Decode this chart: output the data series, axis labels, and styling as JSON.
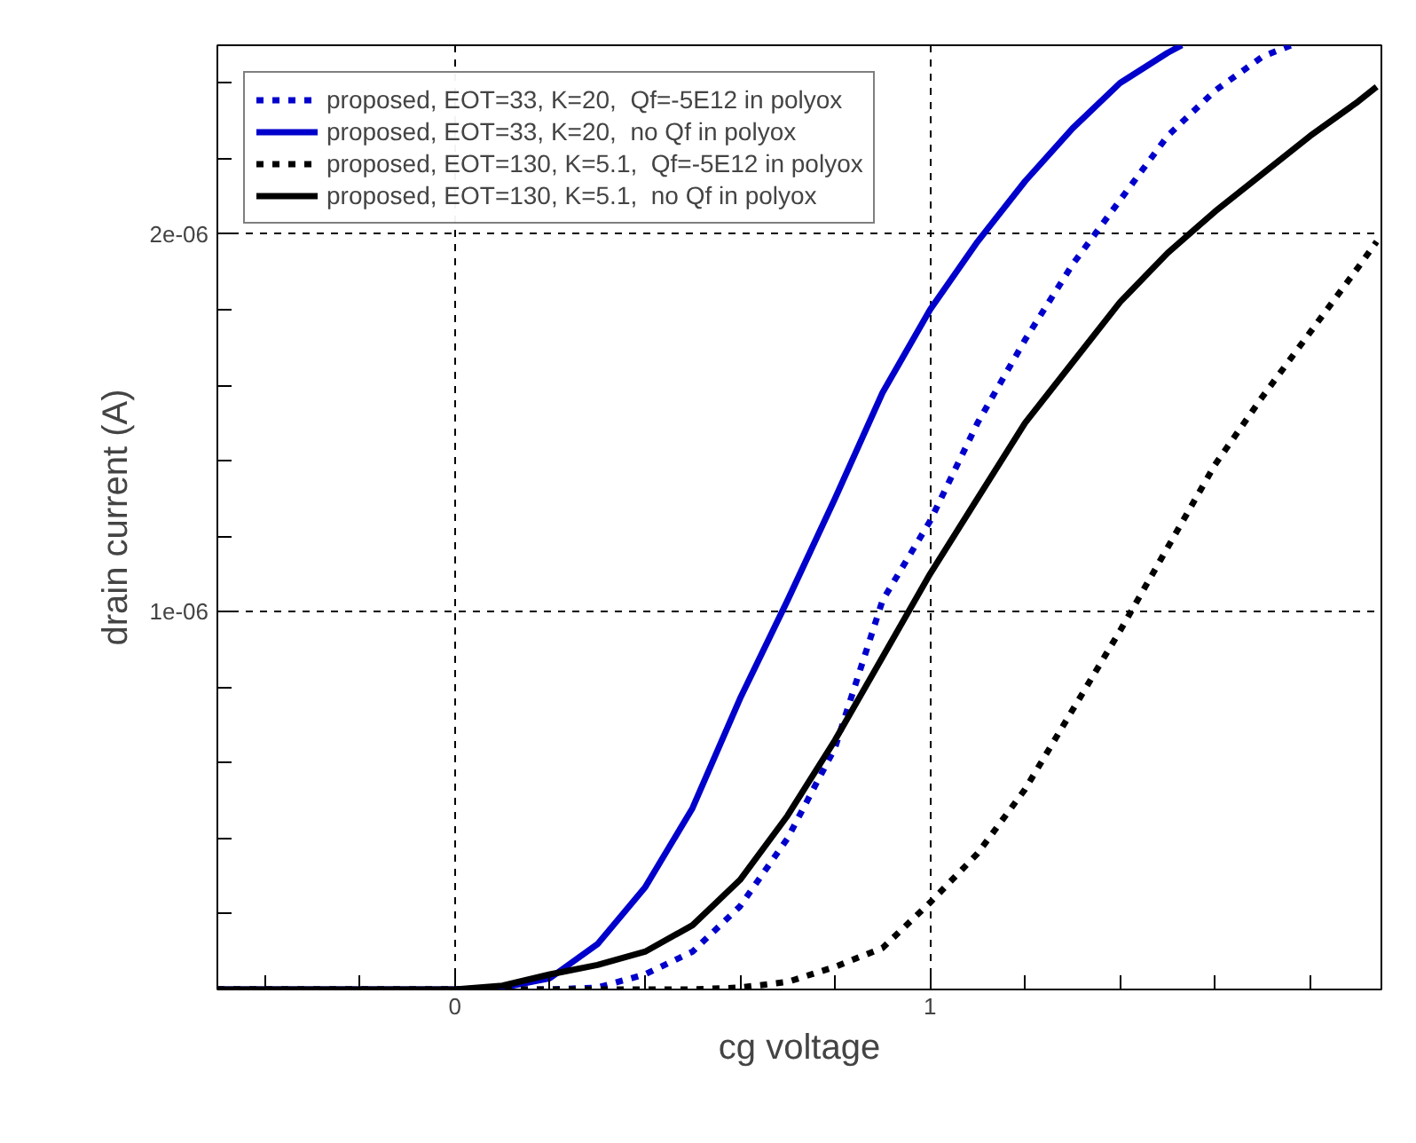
{
  "chart_data": {
    "type": "line",
    "xlabel": "cg voltage",
    "ylabel": "drain current (A)",
    "xlim": [
      -0.5,
      1.95
    ],
    "ylim": [
      0,
      2.5e-06
    ],
    "xticks": [
      {
        "value": -0.4,
        "label": null
      },
      {
        "value": -0.2,
        "label": null
      },
      0,
      {
        "value": 0.2,
        "label": null
      },
      {
        "value": 0.4,
        "label": null
      },
      {
        "value": 0.6,
        "label": null
      },
      {
        "value": 0.8,
        "label": null
      },
      1,
      {
        "value": 1.2,
        "label": null
      },
      {
        "value": 1.4,
        "label": null
      },
      {
        "value": 1.6,
        "label": null
      },
      {
        "value": 1.8,
        "label": null
      }
    ],
    "yticks": [
      {
        "value": 2e-07,
        "label": null
      },
      {
        "value": 4e-07,
        "label": null
      },
      {
        "value": 6e-07,
        "label": null
      },
      {
        "value": 8e-07,
        "label": null
      },
      {
        "value": 1e-06,
        "label": "1e-06"
      },
      {
        "value": 1.2e-06,
        "label": null
      },
      {
        "value": 1.4e-06,
        "label": null
      },
      {
        "value": 1.6e-06,
        "label": null
      },
      {
        "value": 1.8e-06,
        "label": null
      },
      {
        "value": 2e-06,
        "label": "2e-06"
      },
      {
        "value": 2.2e-06,
        "label": null
      },
      {
        "value": 2.4e-06,
        "label": null
      }
    ],
    "grid": true,
    "legend": "top left",
    "series": [
      {
        "name": "proposed, EOT=33, K=20,  Qf=-5E12 in polyox",
        "color": "#0000cc",
        "line_style": "dotted",
        "x": [
          -0.5,
          0,
          0.2,
          0.3,
          0.4,
          0.5,
          0.6,
          0.7,
          0.8,
          0.9,
          1.0,
          1.1,
          1.2,
          1.3,
          1.4,
          1.5,
          1.6,
          1.7,
          1.76
        ],
        "values": [
          0,
          0,
          0,
          5e-09,
          4e-08,
          1e-07,
          2.2e-07,
          4e-07,
          6.4e-07,
          1.03e-06,
          1.24e-06,
          1.5e-06,
          1.72e-06,
          1.92e-06,
          2.09e-06,
          2.26e-06,
          2.38e-06,
          2.47e-06,
          2.5e-06
        ]
      },
      {
        "name": "proposed, EOT=33, K=20,  no Qf in polyox",
        "color": "#0000cc",
        "line_style": "solid",
        "x": [
          -0.5,
          0,
          0.1,
          0.2,
          0.3,
          0.4,
          0.5,
          0.6,
          0.7,
          0.8,
          0.9,
          1.0,
          1.1,
          1.2,
          1.3,
          1.4,
          1.5,
          1.53
        ],
        "values": [
          0,
          0,
          5e-09,
          3e-08,
          1.2e-07,
          2.7e-07,
          4.8e-07,
          7.7e-07,
          1.03e-06,
          1.3e-06,
          1.58e-06,
          1.8e-06,
          1.98e-06,
          2.14e-06,
          2.28e-06,
          2.4e-06,
          2.48e-06,
          2.5e-06
        ]
      },
      {
        "name": "proposed, EOT=130, K=5.1,  Qf=-5E12 in polyox",
        "color": "#000000",
        "line_style": "dotted",
        "x": [
          -0.5,
          0.5,
          0.6,
          0.7,
          0.8,
          0.9,
          1.0,
          1.1,
          1.2,
          1.3,
          1.4,
          1.5,
          1.6,
          1.7,
          1.8,
          1.9,
          1.94
        ],
        "values": [
          0,
          0,
          5e-09,
          2e-08,
          6e-08,
          1.1e-07,
          2.3e-07,
          3.6e-07,
          5.3e-07,
          7.4e-07,
          9.5e-07,
          1.17e-06,
          1.39e-06,
          1.57e-06,
          1.74e-06,
          1.91e-06,
          1.98e-06
        ]
      },
      {
        "name": "proposed, EOT=130, K=5.1,  no Qf in polyox",
        "color": "#000000",
        "line_style": "solid",
        "x": [
          -0.5,
          0,
          0.1,
          0.2,
          0.3,
          0.4,
          0.5,
          0.6,
          0.7,
          0.8,
          0.9,
          1.0,
          1.1,
          1.2,
          1.3,
          1.4,
          1.5,
          1.6,
          1.7,
          1.8,
          1.9,
          1.94
        ],
        "values": [
          0,
          0,
          1e-08,
          4e-08,
          6.5e-08,
          1e-07,
          1.7e-07,
          2.9e-07,
          4.6e-07,
          6.6e-07,
          8.8e-07,
          1.1e-06,
          1.3e-06,
          1.5e-06,
          1.66e-06,
          1.82e-06,
          1.95e-06,
          2.06e-06,
          2.16e-06,
          2.26e-06,
          2.35e-06,
          2.39e-06
        ]
      }
    ]
  }
}
